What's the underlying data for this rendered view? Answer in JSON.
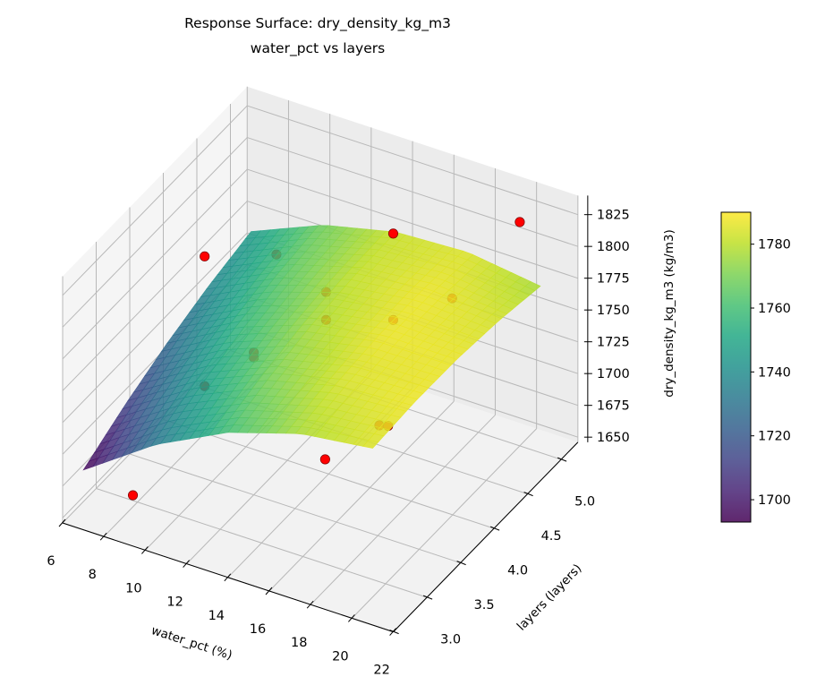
{
  "chart_data": {
    "type": "surface",
    "title": "Response Surface: dry_density_kg_m3",
    "subtitle": "water_pct vs layers",
    "xlabel": "water_pct (%)",
    "ylabel": "layers (layers)",
    "zlabel": "dry_density_kg_m3 (kg/m3)",
    "xlim": [
      6,
      22
    ],
    "ylim": [
      3,
      5.75
    ],
    "zlim": [
      1646,
      1840
    ],
    "xticks": [
      6,
      8,
      10,
      12,
      14,
      16,
      18,
      20,
      22
    ],
    "yticks": [
      "3.0",
      "3.5",
      "4.0",
      "4.5",
      "5.0"
    ],
    "ytick_gridlines": [
      3.0,
      3.5,
      4.0,
      4.5,
      5.0,
      5.5
    ],
    "zticks": [
      "1650",
      "1675",
      "1700",
      "1725",
      "1750",
      "1775",
      "1800",
      "1825"
    ],
    "grid": true,
    "colormap": "viridis",
    "surface": {
      "x": [
        7,
        10.5,
        14,
        17.5,
        21
      ],
      "y": [
        3,
        3.625,
        4.25,
        4.875,
        5.5
      ],
      "z": [
        [
          1693.0,
          1731.8,
          1760.0,
          1777.8,
          1785.0
        ],
        [
          1710.5,
          1745.5,
          1770.0,
          1784.0,
          1787.5
        ],
        [
          1725.0,
          1756.3,
          1777.0,
          1787.3,
          1787.0
        ],
        [
          1736.5,
          1764.0,
          1781.0,
          1787.5,
          1783.5
        ],
        [
          1745.0,
          1768.8,
          1782.0,
          1784.8,
          1777.0
        ]
      ]
    },
    "scatter": {
      "color": "#ff0000",
      "points": [
        {
          "x": 9.4,
          "y": 3.0,
          "z": 1686
        },
        {
          "x": 8.0,
          "y": 4.5,
          "z": 1785
        },
        {
          "x": 8.0,
          "y": 4.5,
          "z": 1683
        },
        {
          "x": 12.0,
          "y": 4.0,
          "z": 1758
        },
        {
          "x": 12.0,
          "y": 4.0,
          "z": 1754
        },
        {
          "x": 9.2,
          "y": 5.2,
          "z": 1755
        },
        {
          "x": 12.9,
          "y": 4.8,
          "z": 1767
        },
        {
          "x": 12.9,
          "y": 4.8,
          "z": 1745
        },
        {
          "x": 15.5,
          "y": 5.0,
          "z": 1816
        },
        {
          "x": 15.5,
          "y": 5.0,
          "z": 1748
        },
        {
          "x": 17.7,
          "y": 5.2,
          "z": 1766
        },
        {
          "x": 20.0,
          "y": 5.5,
          "z": 1822
        },
        {
          "x": 18.7,
          "y": 3.0,
          "z": 1764
        },
        {
          "x": 19.7,
          "y": 3.5,
          "z": 1769
        },
        {
          "x": 18.5,
          "y": 4.0,
          "z": 1735
        }
      ]
    },
    "colorbar": {
      "range": [
        1693,
        1790
      ],
      "ticks": [
        "1700",
        "1720",
        "1740",
        "1760",
        "1780"
      ]
    }
  }
}
